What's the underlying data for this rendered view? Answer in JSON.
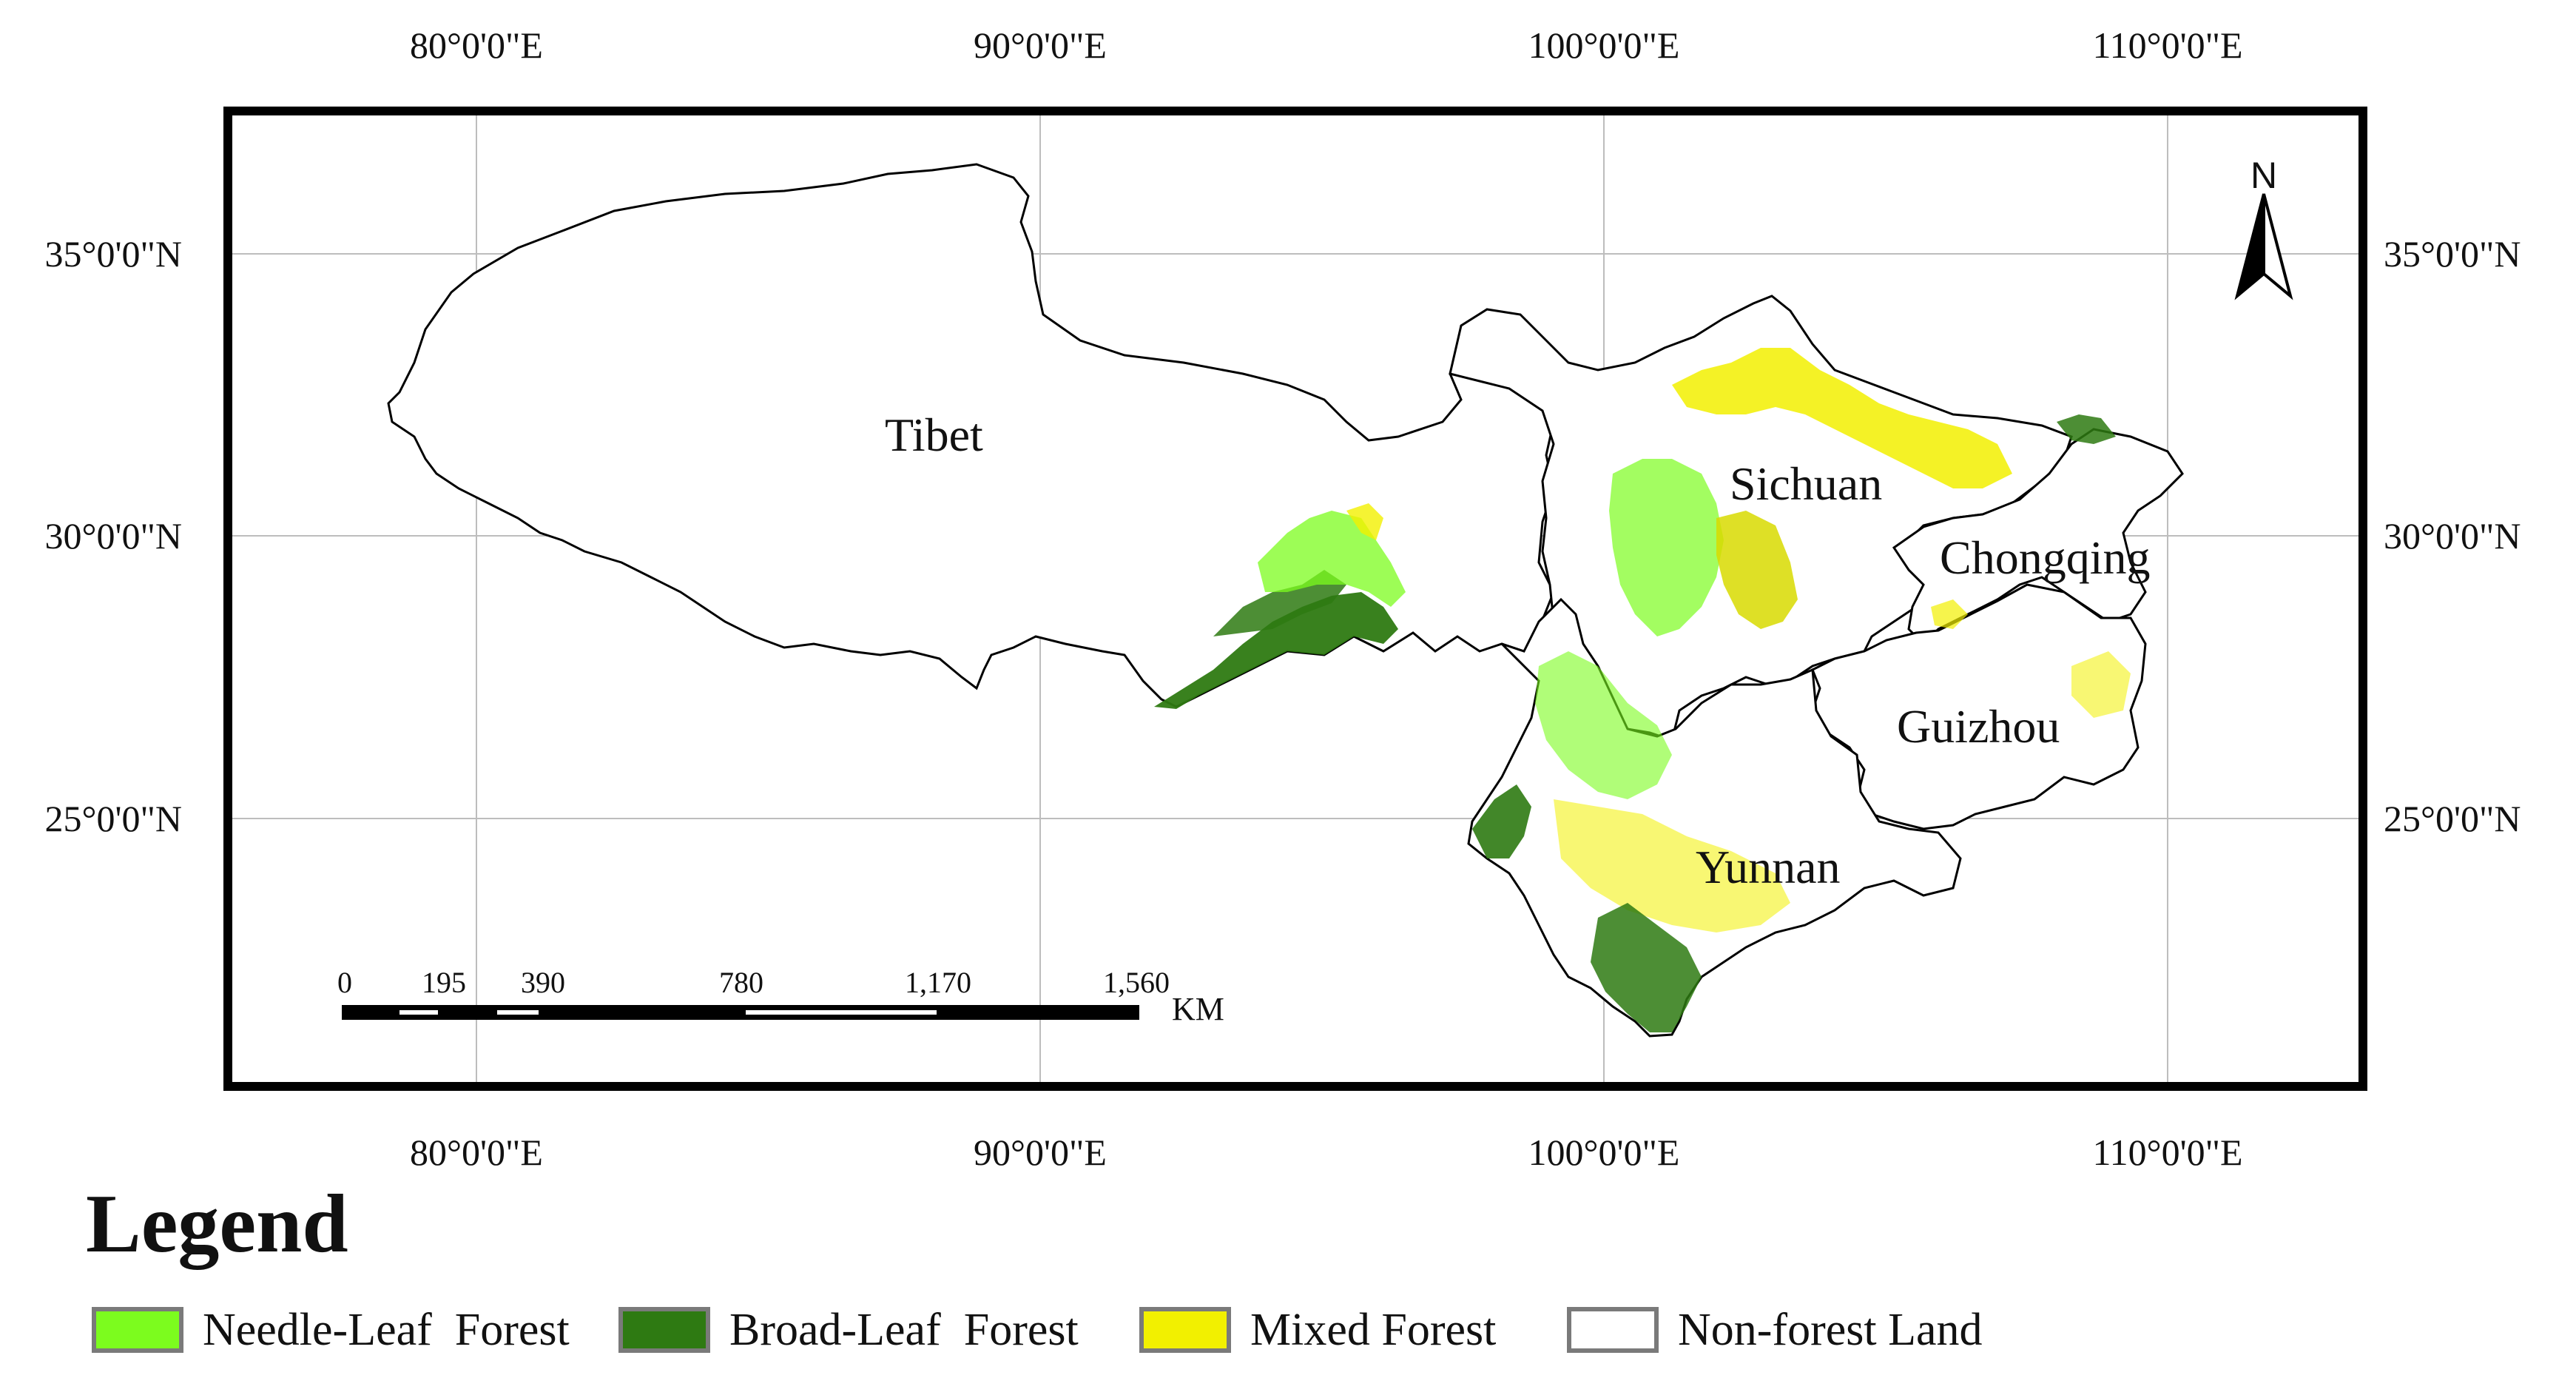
{
  "longitude_labels": [
    "80°0'0\"E",
    "90°0'0\"E",
    "100°0'0\"E",
    "110°0'0\"E"
  ],
  "latitude_labels": [
    "35°0'0\"N",
    "30°0'0\"N",
    "25°0'0\"N"
  ],
  "places": [
    "Tibet",
    "Sichuan",
    "Chongqing",
    "Guizhou",
    "Yunnan"
  ],
  "north_arrow_label": "N",
  "scale_bar": {
    "ticks": [
      "0",
      "195",
      "390",
      "780",
      "1,170",
      "1,560"
    ],
    "unit": "KM"
  },
  "legend": {
    "title": "Legend",
    "items": [
      {
        "label": "Needle-Leaf  Forest",
        "color": "#7CFC1E"
      },
      {
        "label": "Broad-Leaf  Forest",
        "color": "#2E7A12"
      },
      {
        "label": "Mixed Forest",
        "color": "#F2F000"
      },
      {
        "label": "Non-forest Land",
        "color": "#FFFFFF"
      }
    ]
  }
}
